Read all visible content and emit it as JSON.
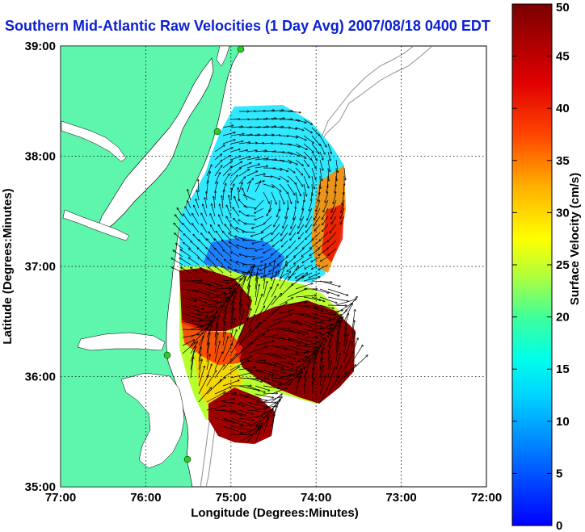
{
  "title": "Southern Mid-Atlantic Raw Velocities (1 Day Avg) 2007/08/18 0400 EDT",
  "chart_data": {
    "type": "heatmap",
    "xlabel": "Longitude (Degrees:Minutes)",
    "ylabel": "Latitude (Degrees:Minutes)",
    "x_ticks": [
      "77:00",
      "76:00",
      "75:00",
      "74:00",
      "73:00",
      "72:00"
    ],
    "y_ticks": [
      "39:00",
      "38:00",
      "37:00",
      "36:00",
      "35:00"
    ],
    "xlim": [
      -77,
      -72
    ],
    "ylim": [
      35,
      39
    ],
    "grid": true,
    "colorbar": {
      "label": "Surface Velocity (cm/s)",
      "range": [
        0,
        50
      ],
      "ticks": [
        "0",
        "5",
        "10",
        "15",
        "20",
        "25",
        "30",
        "35",
        "40",
        "45",
        "50"
      ]
    },
    "regions": [
      {
        "name": "north lobe",
        "speed_cm_s": 12
      },
      {
        "name": "east edge",
        "speed_cm_s": 32
      },
      {
        "name": "central",
        "speed_cm_s": 7
      },
      {
        "name": "southwest jet",
        "speed_cm_s": 48
      },
      {
        "name": "southeast jet",
        "speed_cm_s": 48
      },
      {
        "name": "southern tail",
        "speed_cm_s": 46
      },
      {
        "name": "transition band",
        "speed_cm_s": 22
      }
    ]
  },
  "colors": {
    "land": "#5ef5ac",
    "title": "#0b1fd6",
    "station": "#27d11f"
  }
}
